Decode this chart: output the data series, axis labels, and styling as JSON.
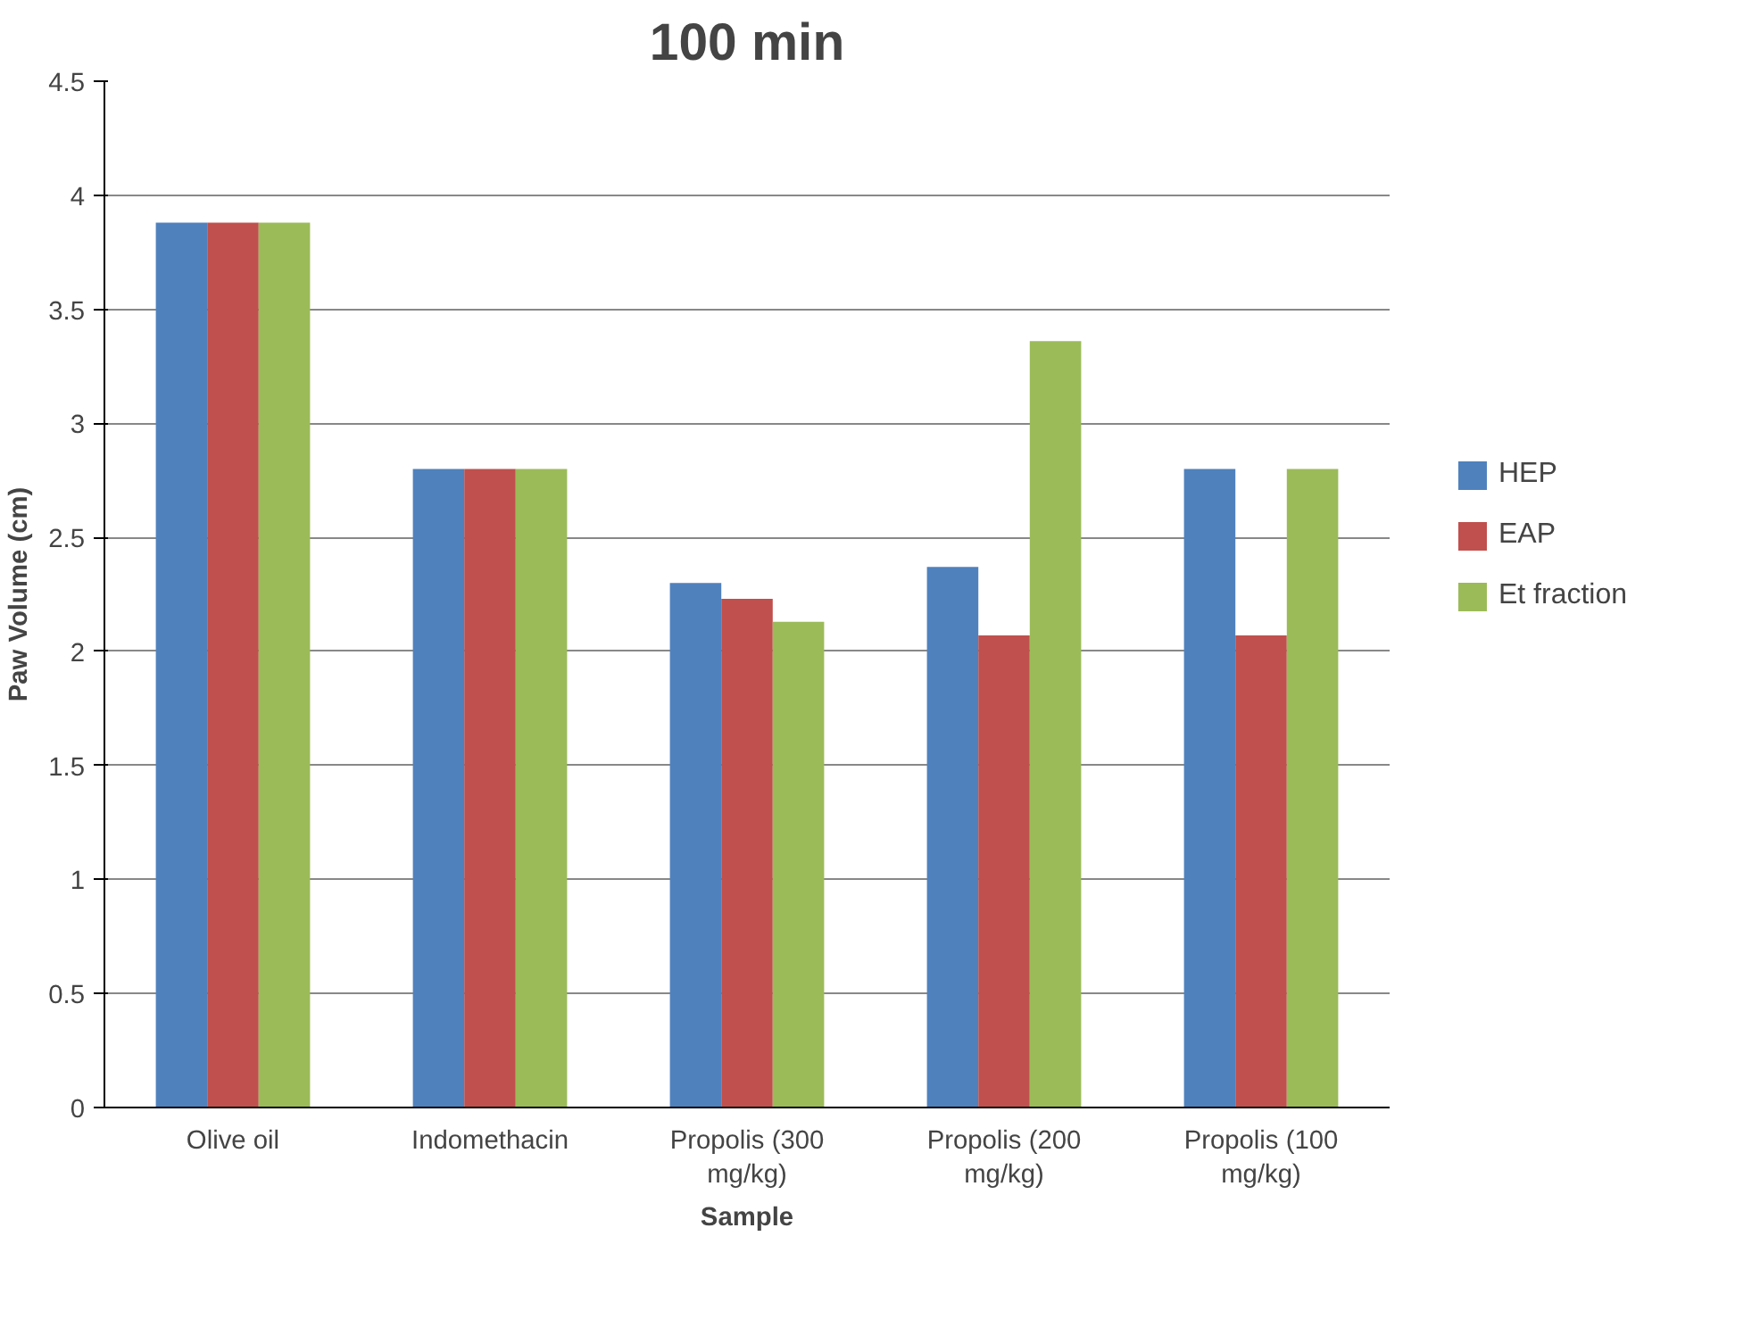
{
  "chart_data": {
    "type": "bar",
    "title": "100 min",
    "xlabel": "Sample",
    "ylabel": "Paw Volume (cm)",
    "categories": [
      "Olive oil",
      "Indomethacin",
      "Propolis (300 mg/kg)",
      "Propolis (200 mg/kg)",
      "Propolis (100 mg/kg)"
    ],
    "series": [
      {
        "name": "HEP",
        "color": "#4f81bd",
        "values": [
          3.88,
          2.8,
          2.3,
          2.37,
          2.8
        ]
      },
      {
        "name": "EAP",
        "color": "#c0504d",
        "values": [
          3.88,
          2.8,
          2.23,
          2.07,
          2.07
        ]
      },
      {
        "name": "Et fraction",
        "color": "#9bbb59",
        "values": [
          3.88,
          2.8,
          2.13,
          3.36,
          2.8
        ]
      }
    ],
    "ylim": [
      0,
      4.5
    ],
    "yticks": [
      0,
      0.5,
      1,
      1.5,
      2,
      2.5,
      3,
      3.5,
      4,
      4.5
    ],
    "grid": "y",
    "legend": "right"
  }
}
